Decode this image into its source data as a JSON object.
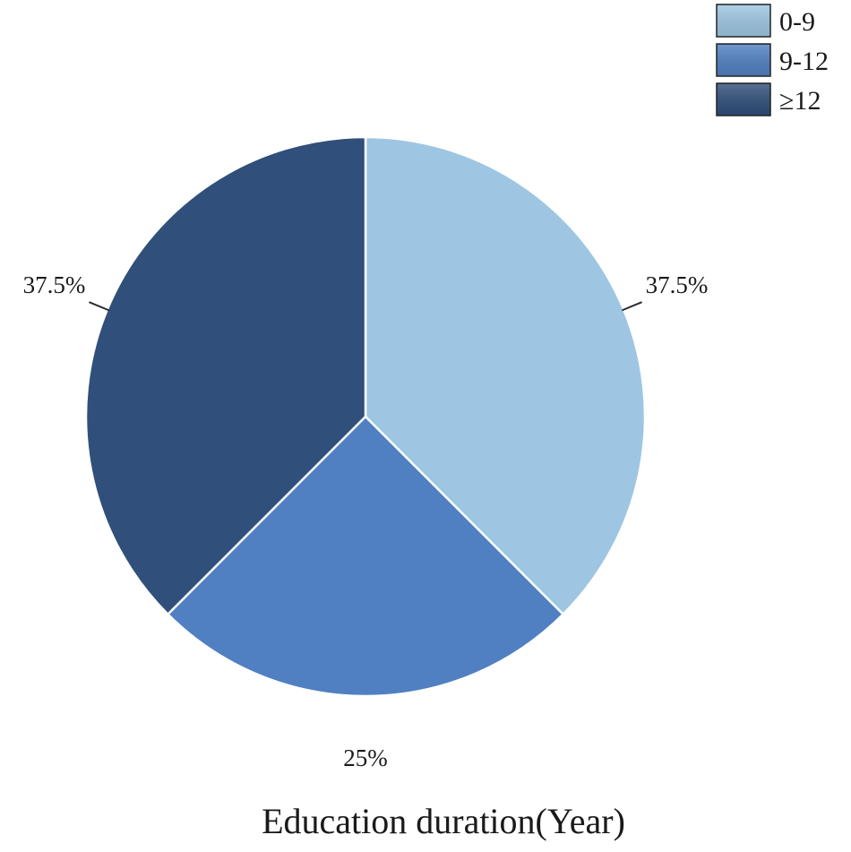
{
  "chart_data": {
    "type": "pie",
    "xlabel": "Education duration(Year)",
    "legend_placement": "top-right",
    "slices": [
      {
        "label": "0-9",
        "value": 37.5,
        "display": "37.5%",
        "color": "#9ec6e2"
      },
      {
        "label": "9-12",
        "value": 25,
        "display": "25%",
        "color": "#5080c2"
      },
      {
        "label": "≥12",
        "value": 37.5,
        "display": "37.5%",
        "color": "#304f7a"
      }
    ]
  }
}
